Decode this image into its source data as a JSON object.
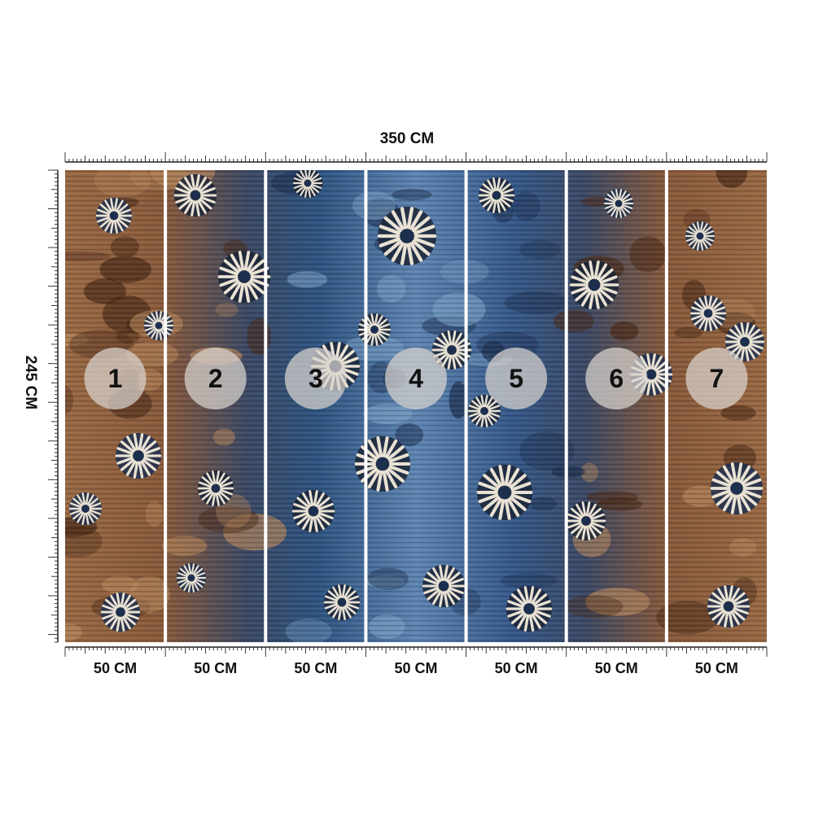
{
  "dimensions": {
    "width_label": "350 CM",
    "height_label": "245 CM"
  },
  "panels": [
    {
      "number": "1",
      "width_label": "50 CM",
      "tone": "brown"
    },
    {
      "number": "2",
      "width_label": "50 CM",
      "tone": "mixed-brown"
    },
    {
      "number": "3",
      "width_label": "50 CM",
      "tone": "blue"
    },
    {
      "number": "4",
      "width_label": "50 CM",
      "tone": "light-blue"
    },
    {
      "number": "5",
      "width_label": "50 CM",
      "tone": "blue"
    },
    {
      "number": "6",
      "width_label": "50 CM",
      "tone": "mixed-brown"
    },
    {
      "number": "7",
      "width_label": "50 CM",
      "tone": "brown"
    }
  ],
  "colors": {
    "brown": "#9a6a45",
    "dark_brown": "#4a2a18",
    "navy": "#1d2f4f",
    "blue": "#3c6391",
    "light_blue": "#7da3c8",
    "cream": "#e9e2d4",
    "circle_fill": "#d9d4cf",
    "number_text": "#111111"
  },
  "icons": {
    "ruler_top": "ruler-horizontal-icon",
    "ruler_left": "ruler-vertical-icon",
    "ruler_bottom": "ruler-horizontal-icon",
    "pattern": "tie-dye-flower-icon"
  }
}
